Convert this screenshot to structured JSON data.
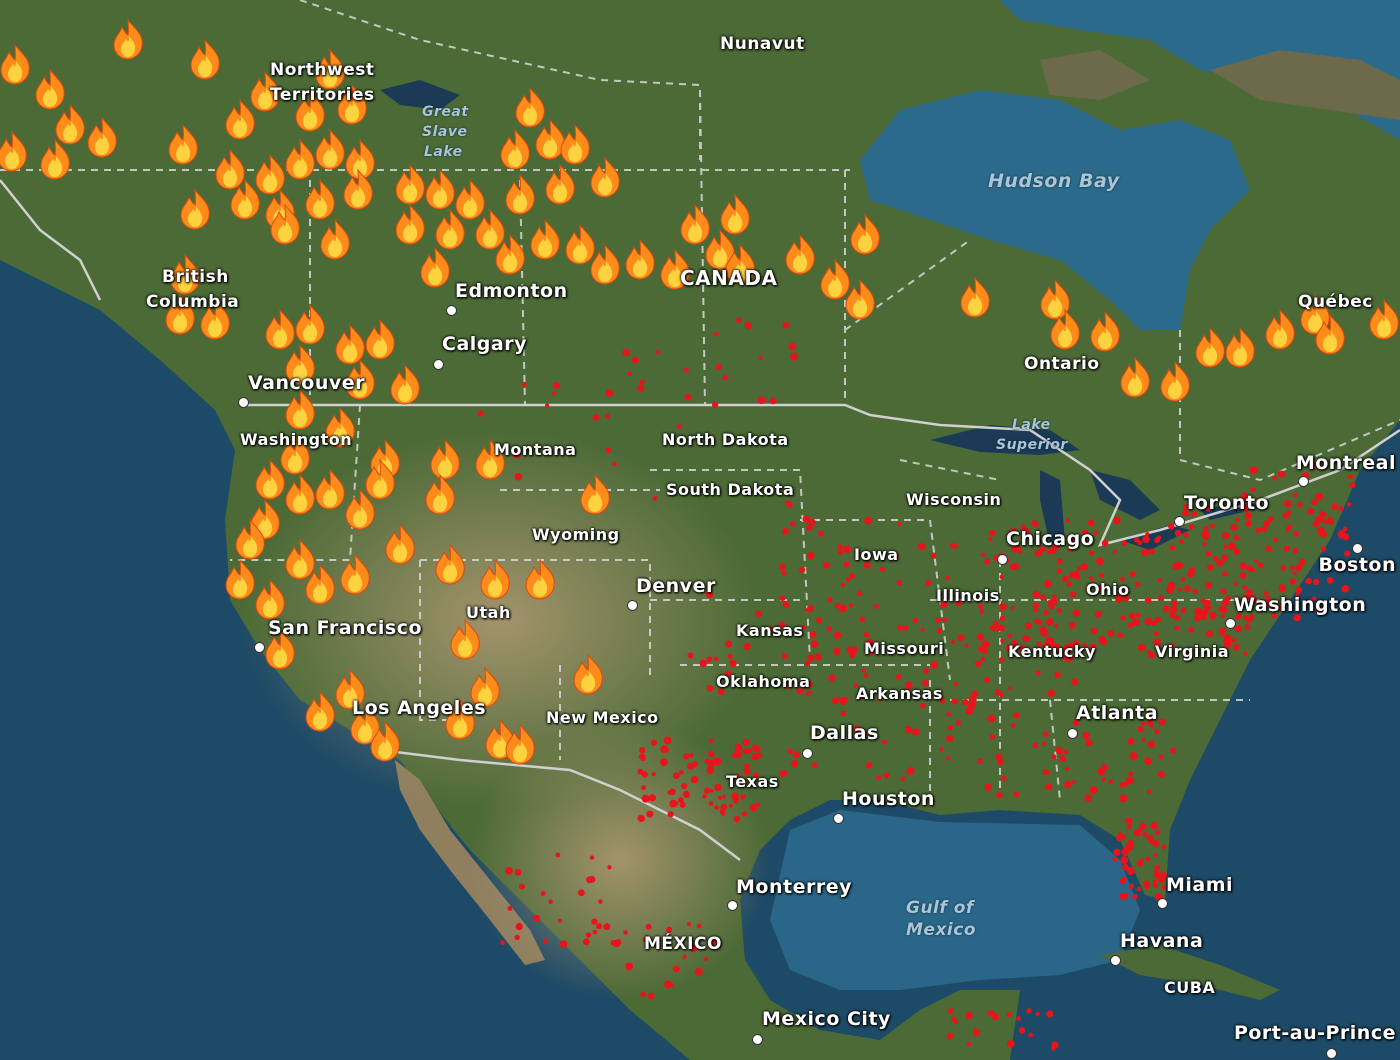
{
  "colors": {
    "ocean": "#1d4a66",
    "land_forest": "#4b6a36",
    "land_desert": "#9a8764",
    "fire_outer": "#ff8c1a",
    "fire_inner": "#ffd23f",
    "hotspot": "#e8141c",
    "border": "#d8d8d8"
  },
  "icons": {
    "fire": "fire-icon",
    "hotspot": "hotspot-dot",
    "city": "city-dot"
  },
  "labels": {
    "nunavut": "Nunavut",
    "northwest_territories_1": "Northwest",
    "northwest_territories_2": "Territories",
    "great_slave_lake_1": "Great",
    "great_slave_lake_2": "Slave",
    "great_slave_lake_3": "Lake",
    "hudson_bay": "Hudson Bay",
    "british_columbia_1": "British",
    "british_columbia_2": "Columbia",
    "edmonton": "Edmonton",
    "canada": "CANADA",
    "calgary": "Calgary",
    "vancouver": "Vancouver",
    "ontario": "Ontario",
    "quebec": "Québec",
    "lake_superior_1": "Lake",
    "lake_superior_2": "Superior",
    "montreal": "Montreal",
    "toronto": "Toronto",
    "boston": "Boston",
    "washington_state": "Washington",
    "montana": "Montana",
    "north_dakota": "North Dakota",
    "south_dakota": "South Dakota",
    "wisconsin": "Wisconsin",
    "chicago": "Chicago",
    "iowa": "Iowa",
    "wyoming": "Wyoming",
    "denver": "Denver",
    "illinois": "Illinois",
    "ohio": "Ohio",
    "washington_dc": "Washington",
    "utah": "Utah",
    "san_francisco": "San Francisco",
    "kansas": "Kansas",
    "missouri": "Missouri",
    "kentucky": "Kentucky",
    "virginia": "Virginia",
    "oklahoma": "Oklahoma",
    "arkansas": "Arkansas",
    "los_angeles": "Los Angeles",
    "new_mexico": "New Mexico",
    "atlanta": "Atlanta",
    "dallas": "Dallas",
    "texas": "Texas",
    "houston": "Houston",
    "monterrey": "Monterrey",
    "miami": "Miami",
    "gulf_of_mexico_1": "Gulf of",
    "gulf_of_mexico_2": "Mexico",
    "mexico": "MÉXICO",
    "havana": "Havana",
    "cuba": "CUBA",
    "mexico_city": "Mexico City",
    "port_au_prince": "Port-au-Prince"
  }
}
